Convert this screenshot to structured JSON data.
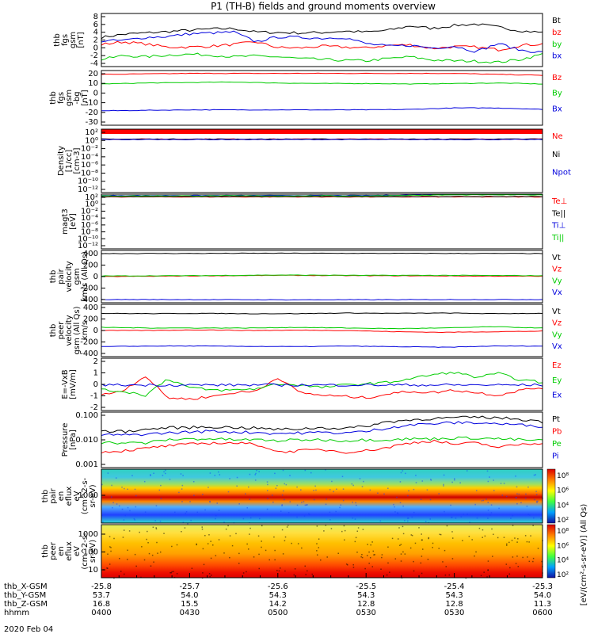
{
  "title": "P1 (TH-B) fields and ground moments overview",
  "date_label": "2020 Feb 04",
  "chart_data": [
    {
      "type": "line",
      "ylabel": [
        "thb",
        "fgs",
        "gsm",
        "[nT]"
      ],
      "yticks": [
        "8",
        "6",
        "4",
        "2",
        "0",
        "-2",
        "-4"
      ],
      "ylim": [
        -4,
        8
      ],
      "series": [
        {
          "name": "Bt",
          "color": "#000000",
          "values": [
            2.6,
            3.3,
            3.6,
            3.9,
            4.2,
            4.5,
            4.6,
            3.8,
            3.7,
            3.6,
            3.7,
            4.0,
            3.8,
            4.2,
            5.2,
            4.6,
            5.3,
            5.6,
            4.9,
            4.1,
            3.7
          ]
        },
        {
          "name": "bz",
          "color": "#ff0000",
          "values": [
            1.0,
            1.6,
            1.1,
            0.4,
            0.4,
            0.6,
            1.0,
            1.6,
            0.3,
            0.2,
            0.6,
            0.4,
            0.2,
            0.8,
            0.9,
            0.1,
            0.5,
            0.4,
            -0.2,
            0.8,
            1.1
          ]
        },
        {
          "name": "by",
          "color": "#00cc00",
          "values": [
            -2.4,
            -1.5,
            -1.8,
            -1.4,
            -1.2,
            -1.4,
            -1.8,
            -1.6,
            -1.8,
            -2.2,
            -2.4,
            -2.6,
            -2.7,
            -2.2,
            -1.8,
            -2.5,
            -2.7,
            -2.8,
            -3.0,
            -2.4,
            -1.2
          ]
        },
        {
          "name": "bx",
          "color": "#0000dd",
          "values": [
            1.8,
            1.9,
            2.6,
            2.8,
            3.4,
            3.6,
            3.8,
            1.6,
            2.7,
            2.6,
            2.4,
            2.6,
            1.2,
            0.6,
            0.8,
            0.2,
            0.6,
            -0.6,
            1.2,
            -0.3,
            -0.8
          ]
        }
      ]
    },
    {
      "type": "line",
      "ylabel": [
        "thb",
        "fgs",
        "gsm",
        "-bg",
        "[nT]"
      ],
      "yticks": [
        "20",
        "10",
        "0",
        "-10",
        "-20",
        "-30"
      ],
      "ylim": [
        -35,
        22
      ],
      "series": [
        {
          "name": "Bz",
          "color": "#ff0000",
          "values": [
            18,
            18.5,
            19,
            19,
            19,
            19,
            19,
            19,
            19,
            18,
            17
          ]
        },
        {
          "name": "By",
          "color": "#00cc00",
          "values": [
            8,
            9,
            9.5,
            10,
            9,
            8.5,
            8.5,
            8,
            8.5,
            9,
            8
          ]
        },
        {
          "name": "Bx",
          "color": "#0000dd",
          "values": [
            -20,
            -19.5,
            -19,
            -19,
            -19,
            -19,
            -19,
            -18.5,
            -17,
            -17,
            -18.5
          ]
        }
      ]
    },
    {
      "type": "line",
      "ylabel": [
        "Density",
        "[1/cc]",
        "[cm-3]"
      ],
      "yticks": [
        "10²",
        "10⁰",
        "10⁻²",
        "10⁻⁴",
        "10⁻⁶",
        "10⁻⁸",
        "10⁻¹⁰",
        "10⁻¹²"
      ],
      "ylim": [
        -13,
        3
      ],
      "series": [
        {
          "name": "Ne",
          "color": "#ff0000",
          "values": [
            0.5,
            0.5,
            0.5,
            0.5,
            0.5,
            0.5
          ]
        },
        {
          "name": "Ni",
          "color": "#000000",
          "values": [
            0.5,
            0.5,
            0.5,
            0.5,
            0.5,
            0.5
          ]
        },
        {
          "name": "Npot",
          "color": "#0000dd",
          "values": [
            0.4,
            0.4,
            0.4,
            0.4,
            0.4,
            0.4
          ]
        }
      ]
    },
    {
      "type": "line",
      "ylabel": [
        "magt3",
        "[eV]"
      ],
      "yticks": [
        "10²",
        "10⁰",
        "10⁻²",
        "10⁻⁴",
        "10⁻⁶",
        "10⁻⁸",
        "10⁻¹⁰",
        "10⁻¹²"
      ],
      "ylim": [
        -13,
        3
      ],
      "series": [
        {
          "name": "Te⊥",
          "color": "#ff0000",
          "values": [
            2.2,
            2.2,
            2.2,
            2.2,
            2.2,
            2.2
          ]
        },
        {
          "name": "Te||",
          "color": "#000000",
          "values": [
            2.3,
            2.3,
            2.3,
            2.3,
            2.3,
            2.3
          ]
        },
        {
          "name": "Ti⊥",
          "color": "#0000dd",
          "values": [
            2.6,
            2.6,
            2.6,
            2.6,
            2.9,
            2.9
          ]
        },
        {
          "name": "Ti||",
          "color": "#00cc00",
          "values": [
            2.5,
            2.5,
            2.5,
            2.5,
            2.8,
            2.8
          ]
        }
      ]
    },
    {
      "type": "line",
      "ylabel": [
        "thb",
        "pair",
        "velocity",
        "gsm",
        "km/s (All Qs)"
      ],
      "yticks": [
        "400",
        "200",
        "0",
        "-200",
        "-400"
      ],
      "ylim": [
        -420,
        420
      ],
      "series": [
        {
          "name": "Vt",
          "color": "#000000",
          "values": [
            370,
            372,
            375,
            373,
            372,
            370
          ]
        },
        {
          "name": "Vz",
          "color": "#ff0000",
          "values": [
            0,
            10,
            20,
            15,
            10,
            5
          ]
        },
        {
          "name": "Vy",
          "color": "#00cc00",
          "values": [
            10,
            15,
            25,
            20,
            20,
            15
          ]
        },
        {
          "name": "Vx",
          "color": "#0000dd",
          "values": [
            -368,
            -370,
            -373,
            -372,
            -370,
            -368
          ]
        }
      ]
    },
    {
      "type": "line",
      "ylabel": [
        "thb",
        "peer",
        "velocity",
        "gsm (All Qs)",
        "km/s"
      ],
      "yticks": [
        "400",
        "200",
        "0",
        "-200",
        "-400"
      ],
      "ylim": [
        -420,
        420
      ],
      "series": [
        {
          "name": "Vt",
          "color": "#000000",
          "values": [
            275,
            270,
            275,
            270,
            270,
            280,
            275,
            280,
            270,
            275
          ]
        },
        {
          "name": "Vz",
          "color": "#ff0000",
          "values": [
            0,
            0,
            10,
            0,
            5,
            0,
            -20,
            -30,
            -20,
            -10
          ]
        },
        {
          "name": "Vy",
          "color": "#00cc00",
          "values": [
            50,
            40,
            40,
            40,
            50,
            40,
            30,
            40,
            60,
            40
          ]
        },
        {
          "name": "Vx",
          "color": "#0000dd",
          "values": [
            -260,
            -250,
            -250,
            -255,
            -260,
            -250,
            -260,
            -270,
            -250,
            -250
          ]
        }
      ]
    },
    {
      "type": "line",
      "ylabel": [
        "E=-VxB",
        "[mV/m]"
      ],
      "yticks": [
        "2",
        "1",
        "0",
        "-1",
        "-2"
      ],
      "ylim": [
        -2,
        2.1
      ],
      "series": [
        {
          "name": "Ez",
          "color": "#ff0000",
          "values": [
            -0.8,
            -0.4,
            0.7,
            -1.0,
            -1.1,
            -0.9,
            -0.6,
            -0.5,
            0.6,
            -0.6,
            -0.8,
            -0.9,
            -1.0,
            -0.7,
            -0.5,
            -0.6,
            -0.4,
            -0.6,
            -0.8,
            -0.4,
            -0.2
          ]
        },
        {
          "name": "Ey",
          "color": "#00cc00",
          "values": [
            -0.4,
            -0.5,
            -0.8,
            0.5,
            -0.2,
            -0.4,
            -0.4,
            -0.3,
            0.1,
            0.0,
            -0.2,
            0.0,
            0.1,
            0.2,
            0.5,
            0.8,
            1.0,
            0.6,
            0.9,
            0.4,
            0.2
          ]
        },
        {
          "name": "Ex",
          "color": "#0000dd",
          "values": [
            0.0,
            0.0,
            0.0,
            0.0,
            0.0,
            0.0
          ]
        }
      ]
    },
    {
      "type": "line",
      "ylabel": [
        "Pressure",
        "[nPa]"
      ],
      "yticks": [
        "0.100",
        "0.010",
        "0.001"
      ],
      "ylim": [
        -3,
        -0.85
      ],
      "series": [
        {
          "name": "Pt",
          "color": "#000000",
          "values": [
            0.026,
            0.025,
            0.03,
            0.035,
            0.036,
            0.038,
            0.036,
            0.034,
            0.03,
            0.032,
            0.035,
            0.033,
            0.04,
            0.06,
            0.07,
            0.08,
            0.085,
            0.09,
            0.085,
            0.075,
            0.06
          ]
        },
        {
          "name": "Pb",
          "color": "#ff0000",
          "values": [
            0.004,
            0.0045,
            0.0055,
            0.007,
            0.008,
            0.009,
            0.009,
            0.008,
            0.004,
            0.0045,
            0.005,
            0.004,
            0.0045,
            0.006,
            0.009,
            0.011,
            0.008,
            0.009,
            0.006,
            0.008,
            0.009
          ]
        },
        {
          "name": "Pe",
          "color": "#00cc00",
          "values": [
            0.0095,
            0.009,
            0.009,
            0.012,
            0.013,
            0.013,
            0.012,
            0.012,
            0.011,
            0.012,
            0.012,
            0.011,
            0.012,
            0.012,
            0.013,
            0.013,
            0.014,
            0.014,
            0.013,
            0.012,
            0.011
          ]
        },
        {
          "name": "Pi",
          "color": "#0000dd",
          "values": [
            0.019,
            0.018,
            0.02,
            0.022,
            0.024,
            0.026,
            0.024,
            0.023,
            0.021,
            0.022,
            0.023,
            0.022,
            0.025,
            0.035,
            0.045,
            0.05,
            0.055,
            0.055,
            0.05,
            0.045,
            0.04
          ]
        }
      ]
    },
    {
      "type": "heatmap",
      "ylabel": [
        "thb",
        "pair",
        "en",
        "eflux",
        "eV",
        "(cm^2-s-",
        "sr-eV)"
      ],
      "yticks": [
        "1000"
      ],
      "colorbar_ticks": [
        "10⁸",
        "10⁶",
        "10⁴",
        "10²"
      ]
    },
    {
      "type": "heatmap",
      "ylabel": [
        "thb",
        "peer",
        "en",
        "eflux",
        "eV",
        "(cm^2-s-",
        "sr-eV)"
      ],
      "yticks": [
        "1000",
        "100",
        "10"
      ],
      "colorbar_ticks": [
        "10⁸",
        "10⁶",
        "10⁴",
        "10²"
      ]
    }
  ],
  "colorbar_label": "[eV/(cm²-s-sr-eV)]  (All Qs)",
  "xaxis": {
    "ticks": [
      "-25.8",
      "-25.7",
      "-25.6",
      "-25.5",
      "-25.4",
      "-25.3"
    ],
    "rows": [
      {
        "label": "thb_X-GSM",
        "values": [
          "-25.8",
          "-25.7",
          "-25.6",
          "-25.5",
          "-25.4",
          "-25.3"
        ]
      },
      {
        "label": "thb_Y-GSM",
        "values": [
          "53.7",
          "54.0",
          "54.3",
          "54.3",
          "54.3",
          "54.0"
        ]
      },
      {
        "label": "thb_Z-GSM",
        "values": [
          "16.8",
          "15.5",
          "14.2",
          "12.8",
          "12.8",
          "11.3"
        ]
      },
      {
        "label": "hhmm",
        "values": [
          "0400",
          "0430",
          "0500",
          "0530",
          "0530",
          "0600"
        ]
      }
    ]
  }
}
